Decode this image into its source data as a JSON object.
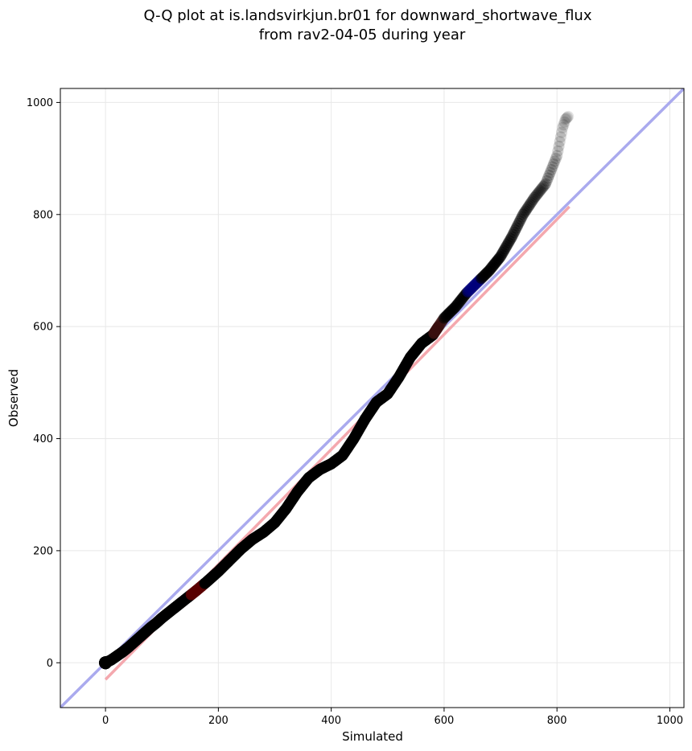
{
  "chart_data": {
    "type": "scatter",
    "title_lines": [
      "Q-Q plot at is.landsvirkjun.br01 for downward_shortwave_flux",
      "from rav2-04-05 during year"
    ],
    "xlabel": "Simulated",
    "ylabel": "Observed",
    "xlim": [
      -80,
      1025
    ],
    "ylim": [
      -80,
      1025
    ],
    "xticks": [
      0,
      200,
      400,
      600,
      800,
      1000
    ],
    "yticks": [
      0,
      200,
      400,
      600,
      800,
      1000
    ],
    "grid": true,
    "reference_line": {
      "slope": 1,
      "intercept": 0,
      "color": "#aaaaee"
    },
    "fit_line": {
      "x": [
        0,
        822
      ],
      "y": [
        -30,
        814
      ],
      "color": "#f4a8ae"
    },
    "quantiles": {
      "x": [
        0,
        10,
        20,
        30,
        40,
        50,
        60,
        70,
        80,
        90,
        100,
        120,
        140,
        160,
        180,
        200,
        220,
        240,
        260,
        280,
        300,
        320,
        340,
        360,
        380,
        400,
        420,
        440,
        460,
        480,
        500,
        520,
        540,
        560,
        580,
        600,
        620,
        640,
        660,
        680,
        700,
        720,
        740,
        760,
        780,
        790,
        800,
        805,
        810,
        815,
        820
      ],
      "y": [
        0,
        5,
        12,
        19,
        27,
        36,
        45,
        54,
        63,
        71,
        80,
        96,
        112,
        128,
        145,
        163,
        183,
        203,
        220,
        233,
        250,
        275,
        305,
        330,
        345,
        355,
        370,
        400,
        435,
        465,
        480,
        510,
        545,
        570,
        585,
        615,
        635,
        660,
        680,
        700,
        725,
        760,
        800,
        830,
        855,
        880,
        905,
        930,
        955,
        970,
        975
      ]
    },
    "point_color": "#000000",
    "highlight_colors": {
      "low": "#5a0000",
      "mid": "#3a1010",
      "high": "#00007a"
    }
  }
}
